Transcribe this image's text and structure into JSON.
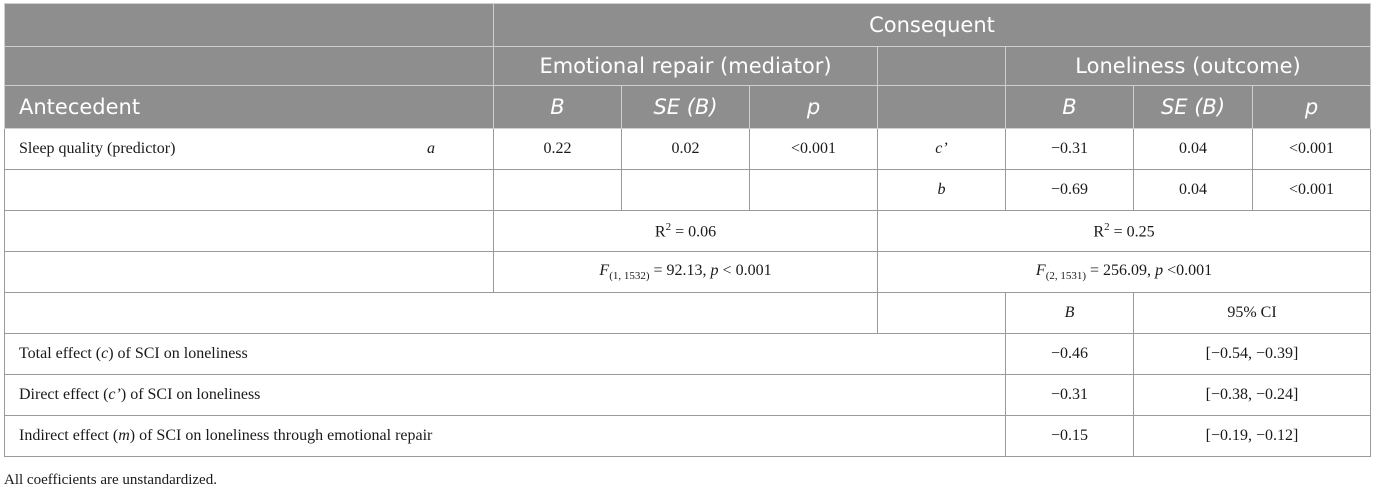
{
  "header": {
    "antecedent": "Antecedent",
    "consequent": "Consequent",
    "mediator": "Emotional repair (mediator)",
    "outcome": "Loneliness (outcome)",
    "col_b": "B",
    "col_se": "SE (B)",
    "col_p": "p"
  },
  "rows": {
    "sleep": {
      "label": "Sleep quality (predictor)",
      "path_a": "a",
      "med_b": "0.22",
      "med_se": "0.02",
      "med_p": "<0.001",
      "path_c": "c’",
      "out_b": "−0.31",
      "out_se": "0.04",
      "out_p": "<0.001"
    },
    "mediator_row": {
      "path_b": "b",
      "out_b": "−0.69",
      "out_se": "0.04",
      "out_p": "<0.001"
    },
    "r2": {
      "med_prefix": "R",
      "med_sup": "2",
      "med_value": " = 0.06",
      "out_prefix": "R",
      "out_sup": "2",
      "out_value": " = 0.25"
    },
    "f": {
      "med_f": "F",
      "med_sub": "(1, 1532)",
      "med_rest": " = 92.13, ",
      "med_p": "p",
      "med_tail": " < 0.001",
      "out_f": "F",
      "out_sub": "(2, 1531)",
      "out_rest": " = 256.09, ",
      "out_p": "p",
      "out_tail": " <0.001"
    },
    "effects_header": {
      "b": "B",
      "ci": "95% CI"
    },
    "total": {
      "pre": "Total effect (",
      "sym": "c",
      "post": ") of SCI on loneliness",
      "b": "−0.46",
      "ci": "[−0.54, −0.39]"
    },
    "direct": {
      "pre": "Direct effect (",
      "sym": "c’",
      "post": ") of SCI on loneliness",
      "b": "−0.31",
      "ci": "[−0.38, −0.24]"
    },
    "indirect": {
      "pre": "Indirect effect (",
      "sym": "m",
      "post": ") of SCI on loneliness through emotional repair",
      "b": "−0.15",
      "ci": "[−0.19, −0.12]"
    }
  },
  "footnote": "All coefficients are unstandardized."
}
